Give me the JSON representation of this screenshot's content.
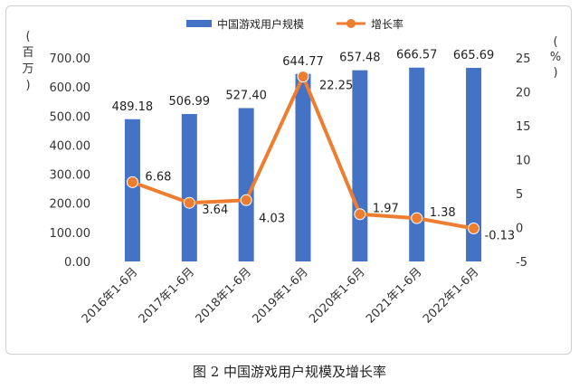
{
  "caption": "图 2 中国游戏用户规模及增长率",
  "chart_data": {
    "type": "bar",
    "categories": [
      "2016年1-6月",
      "2017年1-6月",
      "2018年1-6月",
      "2019年1-6月",
      "2020年1-6月",
      "2021年1-6月",
      "2022年1-6月"
    ],
    "series": [
      {
        "name": "中国游戏用户规模",
        "kind": "bar",
        "axis": "left",
        "values": [
          489.18,
          506.99,
          527.4,
          644.77,
          657.48,
          666.57,
          665.69
        ],
        "color": "#4472c4"
      },
      {
        "name": "增长率",
        "kind": "line",
        "axis": "right",
        "values": [
          6.68,
          3.64,
          4.03,
          22.25,
          1.97,
          1.38,
          -0.13
        ],
        "color": "#ed7d31"
      }
    ],
    "bar_labels": [
      "489.18",
      "506.99",
      "527.40",
      "644.77",
      "657.48",
      "666.57",
      "665.69"
    ],
    "line_labels": [
      "6.68",
      "3.64",
      "4.03",
      "22.25",
      "1.97",
      "1.38",
      "-0.13"
    ],
    "y_left": {
      "unit": [
        "(",
        "百",
        "万",
        ")"
      ],
      "range": [
        0,
        700
      ],
      "step": 100,
      "ticks": [
        "0.00",
        "100.00",
        "200.00",
        "300.00",
        "400.00",
        "500.00",
        "600.00",
        "700.00"
      ]
    },
    "y_right": {
      "unit": [
        "(",
        "%",
        ")"
      ],
      "range": [
        -5,
        25
      ],
      "step": 5,
      "ticks": [
        "-5",
        "0",
        "5",
        "10",
        "15",
        "20",
        "25"
      ]
    },
    "grid": false,
    "legend": "top"
  }
}
